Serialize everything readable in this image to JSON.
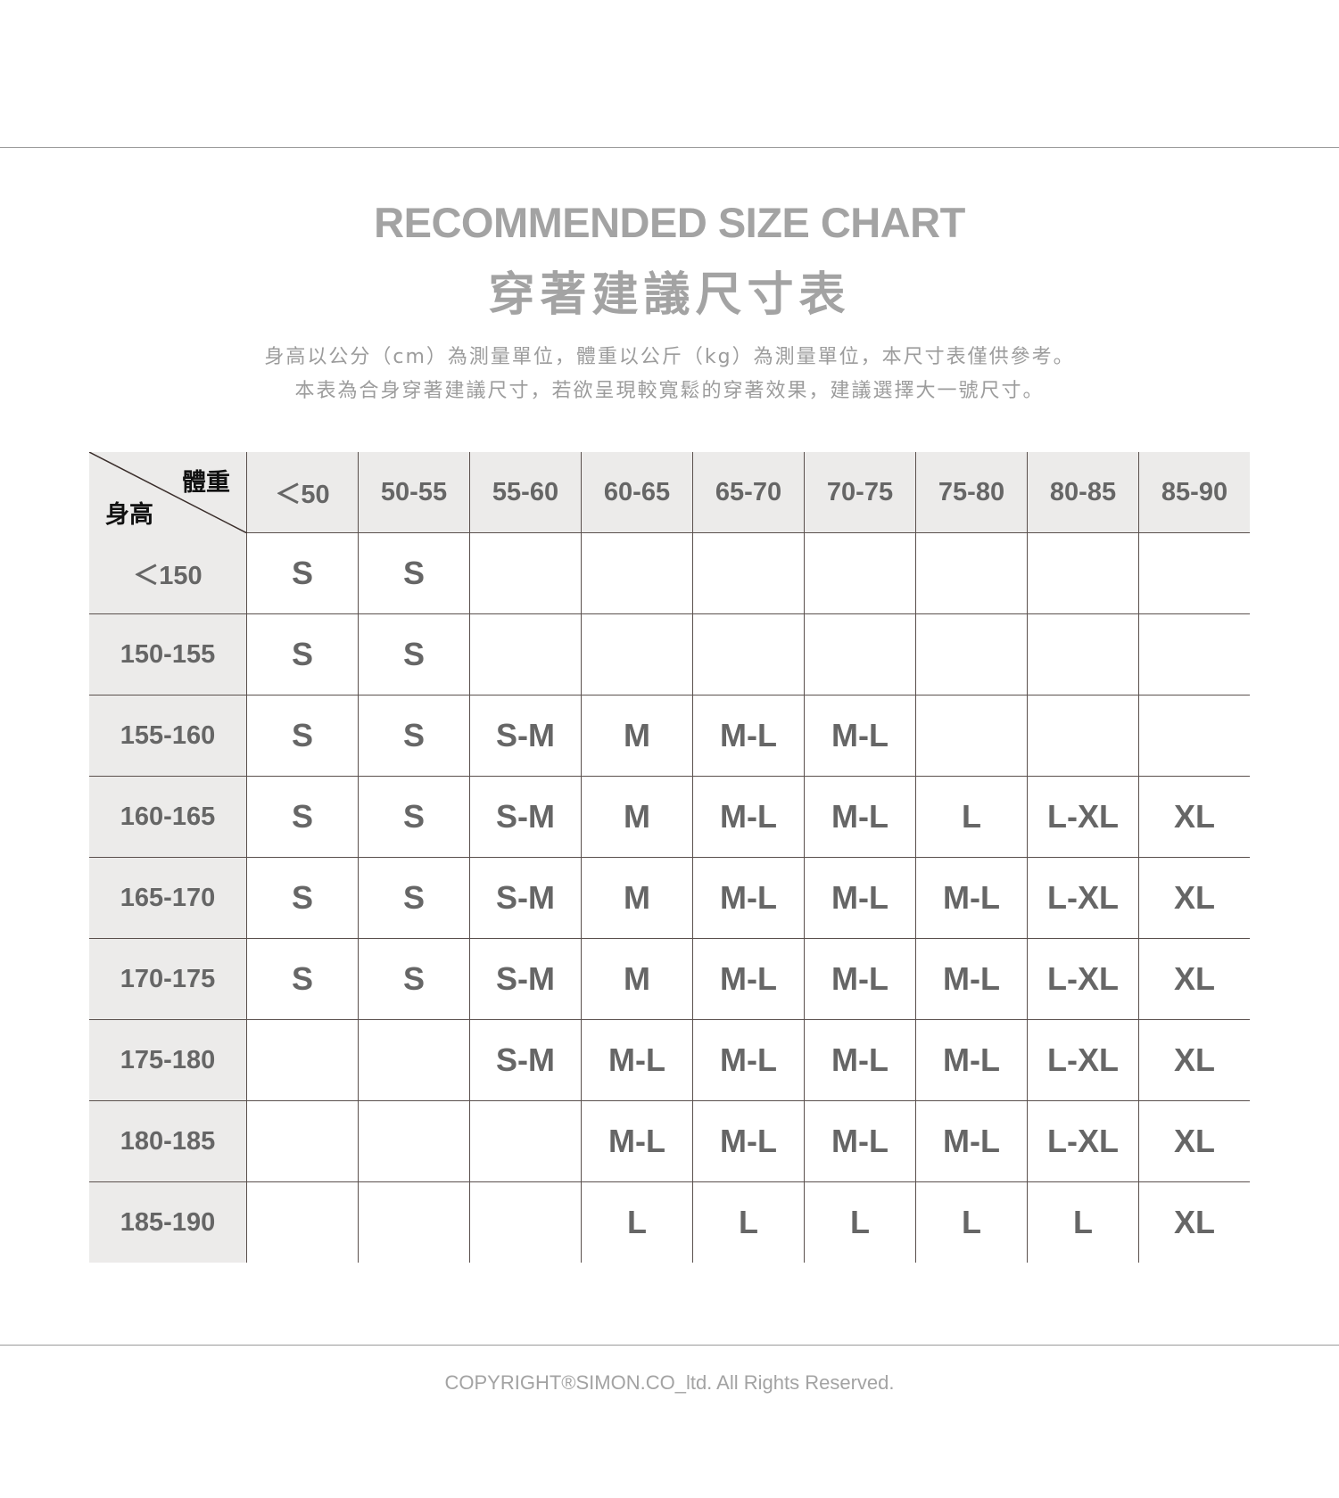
{
  "title_en": "RECOMMENDED SIZE CHART",
  "title_zh": "穿著建議尺寸表",
  "notes": [
    "身高以公分（cm）為測量單位，體重以公斤（kg）為測量單位，本尺寸表僅供參考。",
    "本表為合身穿著建議尺寸，若欲呈現較寬鬆的穿著效果，建議選擇大一號尺寸。"
  ],
  "copyright": "COPYRIGHT®SIMON.CO_ltd. All Rights Reserved.",
  "colors": {
    "text": "#666666",
    "title": "#a3a3a3",
    "header_bg": "#ecebea",
    "grid": "#5a504d"
  },
  "chart_data": {
    "type": "table",
    "corner": {
      "column_axis": "體重",
      "row_axis": "身高"
    },
    "columns": [
      "＜50",
      "50-55",
      "55-60",
      "60-65",
      "65-70",
      "70-75",
      "75-80",
      "80-85",
      "85-90"
    ],
    "rows": [
      {
        "label": "＜150",
        "cells": [
          "S",
          "S",
          "",
          "",
          "",
          "",
          "",
          "",
          ""
        ]
      },
      {
        "label": "150-155",
        "cells": [
          "S",
          "S",
          "",
          "",
          "",
          "",
          "",
          "",
          ""
        ]
      },
      {
        "label": "155-160",
        "cells": [
          "S",
          "S",
          "S-M",
          "M",
          "M-L",
          "M-L",
          "",
          "",
          ""
        ]
      },
      {
        "label": "160-165",
        "cells": [
          "S",
          "S",
          "S-M",
          "M",
          "M-L",
          "M-L",
          "L",
          "L-XL",
          "XL"
        ]
      },
      {
        "label": "165-170",
        "cells": [
          "S",
          "S",
          "S-M",
          "M",
          "M-L",
          "M-L",
          "M-L",
          "L-XL",
          "XL"
        ]
      },
      {
        "label": "170-175",
        "cells": [
          "S",
          "S",
          "S-M",
          "M",
          "M-L",
          "M-L",
          "M-L",
          "L-XL",
          "XL"
        ]
      },
      {
        "label": "175-180",
        "cells": [
          "",
          "",
          "S-M",
          "M-L",
          "M-L",
          "M-L",
          "M-L",
          "L-XL",
          "XL"
        ]
      },
      {
        "label": "180-185",
        "cells": [
          "",
          "",
          "",
          "M-L",
          "M-L",
          "M-L",
          "M-L",
          "L-XL",
          "XL"
        ]
      },
      {
        "label": "185-190",
        "cells": [
          "",
          "",
          "",
          "L",
          "L",
          "L",
          "L",
          "L",
          "XL"
        ]
      }
    ]
  }
}
